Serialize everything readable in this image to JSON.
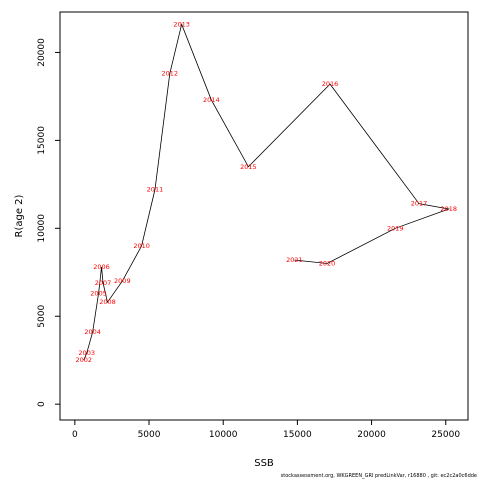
{
  "chart_data": {
    "type": "line",
    "xlabel": "SSB",
    "ylabel": "R(age 2)",
    "xlim": [
      -1000,
      26500
    ],
    "ylim": [
      -900,
      22300
    ],
    "xticks": [
      0,
      5000,
      10000,
      15000,
      20000,
      25000
    ],
    "yticks": [
      0,
      5000,
      10000,
      15000,
      20000
    ],
    "line_color": "#000000",
    "label_color": "#ff0000",
    "points": [
      {
        "label": "2002",
        "x": 600,
        "y": 2500
      },
      {
        "label": "2003",
        "x": 800,
        "y": 2900
      },
      {
        "label": "2004",
        "x": 1200,
        "y": 4100
      },
      {
        "label": "2005",
        "x": 1600,
        "y": 6300
      },
      {
        "label": "2006",
        "x": 1800,
        "y": 7800
      },
      {
        "label": "2007",
        "x": 1900,
        "y": 6900
      },
      {
        "label": "2008",
        "x": 2200,
        "y": 5800
      },
      {
        "label": "2009",
        "x": 3200,
        "y": 7000
      },
      {
        "label": "2010",
        "x": 4500,
        "y": 9000
      },
      {
        "label": "2011",
        "x": 5400,
        "y": 12200
      },
      {
        "label": "2012",
        "x": 6400,
        "y": 18800
      },
      {
        "label": "2013",
        "x": 7200,
        "y": 21600
      },
      {
        "label": "2014",
        "x": 9200,
        "y": 17300
      },
      {
        "label": "2015",
        "x": 11700,
        "y": 13500
      },
      {
        "label": "2016",
        "x": 17200,
        "y": 18200
      },
      {
        "label": "2017",
        "x": 23200,
        "y": 11400
      },
      {
        "label": "2018",
        "x": 25200,
        "y": 11100
      },
      {
        "label": "2019",
        "x": 21600,
        "y": 10000
      },
      {
        "label": "2020",
        "x": 17000,
        "y": 8000
      },
      {
        "label": "2021",
        "x": 14800,
        "y": 8200
      }
    ]
  },
  "footer_text": "stockassessment.org,  WKGREEN_GRI predLinkVar,  r16880 ,  git:  ec2c2a0c6dde"
}
